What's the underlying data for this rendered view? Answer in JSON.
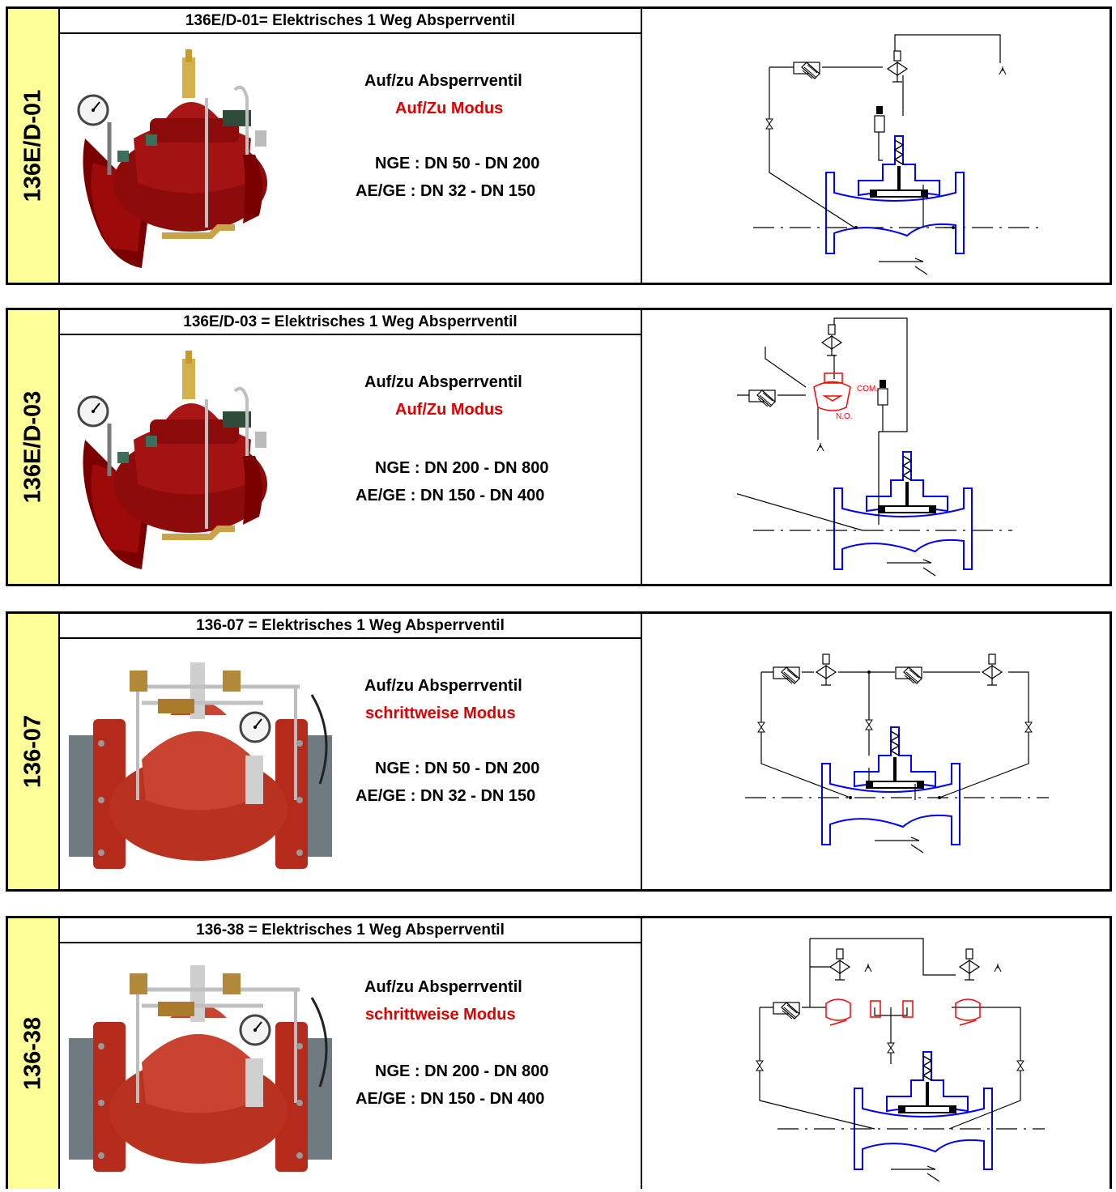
{
  "colors": {
    "sidebar": "#ffff99",
    "mode_text": "#e00000",
    "valve_blue": "#0000ff",
    "pilot_red": "#ff0000"
  },
  "cards": [
    {
      "code": "136E/D-01",
      "title": "136E/D-01= Elektrisches 1 Weg Absperrventil",
      "function": "Auf/zu Absperrventil",
      "mode": "Auf/Zu Modus",
      "nge": "NGE : DN 50 - DN 200",
      "aege": "AE/GE : DN 32 - DN 150"
    },
    {
      "code": "136E/D-03",
      "title": "136E/D-03 = Elektrisches 1 Weg Absperrventil",
      "function": "Auf/zu Absperrventil",
      "mode": "Auf/Zu Modus",
      "nge": "NGE : DN 200 - DN 800",
      "aege": "AE/GE : DN 150 - DN 400",
      "schematic_labels": [
        "COM.",
        "N.O."
      ]
    },
    {
      "code": "136-07",
      "title": "136-07 = Elektrisches 1 Weg Absperrventil",
      "function": "Auf/zu Absperrventil",
      "mode": "schrittweise Modus",
      "nge": "NGE : DN 50 - DN 200",
      "aege": "AE/GE : DN 32 - DN 150"
    },
    {
      "code": "136-38",
      "title": "136-38 = Elektrisches 1 Weg Absperrventil",
      "function": "Auf/zu Absperrventil",
      "mode": "schrittweise Modus",
      "nge": "NGE : DN 200 - DN 800",
      "aege": "AE/GE : DN 150 - DN 400"
    }
  ]
}
